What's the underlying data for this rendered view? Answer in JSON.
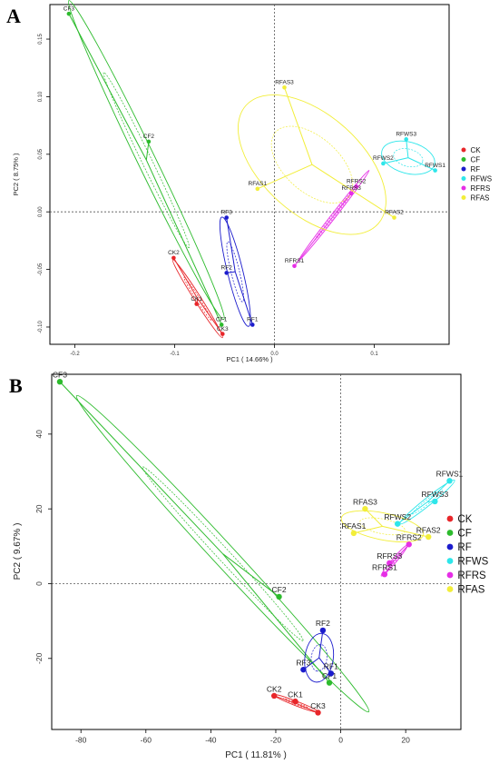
{
  "colors": {
    "CK": "#e8262a",
    "CF": "#2dbb2d",
    "RF": "#1c1ccc",
    "RFWS": "#2ee6ea",
    "RFRS": "#e62ee6",
    "RFAS": "#f2ee3a"
  },
  "chart_data": [
    {
      "type": "scatter",
      "panel": "A",
      "title": "",
      "xlabel": "PC1 ( 14.66% )",
      "ylabel": "PC2 ( 8.75% )",
      "xlim": [
        -0.225,
        0.175
      ],
      "ylim": [
        -0.115,
        0.18
      ],
      "xticks": [
        "-0.2",
        "-0.1",
        "0.0",
        "0.1"
      ],
      "xtick_values": [
        -0.2,
        -0.1,
        0.0,
        0.1
      ],
      "yticks": [
        "-0.10",
        "-0.05",
        "0.00",
        "0.05",
        "0.10",
        "0.15"
      ],
      "ytick_values": [
        -0.1,
        -0.05,
        0.0,
        0.05,
        0.1,
        0.15
      ],
      "grid": false,
      "reference_lines": [
        0,
        0
      ],
      "legend": [
        "CK",
        "CF",
        "RF",
        "RFWS",
        "RFRS",
        "RFAS"
      ],
      "legend_position": "right",
      "series": [
        {
          "name": "CK",
          "points": [
            {
              "label": "CK2",
              "x": -0.101,
              "y": -0.04
            },
            {
              "label": "CK1",
              "x": -0.078,
              "y": -0.08
            },
            {
              "label": "CK3",
              "x": -0.052,
              "y": -0.106
            }
          ]
        },
        {
          "name": "CF",
          "points": [
            {
              "label": "CF3",
              "x": -0.206,
              "y": 0.172
            },
            {
              "label": "CF2",
              "x": -0.126,
              "y": 0.061
            },
            {
              "label": "CF1",
              "x": -0.053,
              "y": -0.098
            }
          ]
        },
        {
          "name": "RF",
          "points": [
            {
              "label": "RF3",
              "x": -0.048,
              "y": -0.005
            },
            {
              "label": "RF2",
              "x": -0.048,
              "y": -0.053
            },
            {
              "label": "RF1",
              "x": -0.022,
              "y": -0.098
            }
          ]
        },
        {
          "name": "RFWS",
          "points": [
            {
              "label": "RFWS3",
              "x": 0.132,
              "y": 0.063
            },
            {
              "label": "RFWS2",
              "x": 0.109,
              "y": 0.042
            },
            {
              "label": "RFWS1",
              "x": 0.161,
              "y": 0.036
            }
          ]
        },
        {
          "name": "RFRS",
          "points": [
            {
              "label": "RFRS2",
              "x": 0.082,
              "y": 0.022
            },
            {
              "label": "RFRS3",
              "x": 0.077,
              "y": 0.016
            },
            {
              "label": "RFRS1",
              "x": 0.02,
              "y": -0.047
            }
          ]
        },
        {
          "name": "RFAS",
          "points": [
            {
              "label": "RFAS3",
              "x": 0.01,
              "y": 0.108
            },
            {
              "label": "RFAS1",
              "x": -0.017,
              "y": 0.02
            },
            {
              "label": "RFAS2",
              "x": 0.12,
              "y": -0.005
            }
          ]
        }
      ]
    },
    {
      "type": "scatter",
      "panel": "B",
      "title": "",
      "xlabel": "PC1 ( 11.81% )",
      "ylabel": "PC2 ( 9.67% )",
      "xlim": [
        -89,
        37
      ],
      "ylim": [
        -39,
        56
      ],
      "xticks": [
        "-80",
        "-60",
        "-40",
        "-20",
        "0",
        "20"
      ],
      "xtick_values": [
        -80,
        -60,
        -40,
        -20,
        0,
        20
      ],
      "yticks": [
        "-20",
        "0",
        "20",
        "40"
      ],
      "ytick_values": [
        -20,
        0,
        20,
        40
      ],
      "grid": false,
      "reference_lines": [
        0,
        0
      ],
      "legend": [
        "CK",
        "CF",
        "RF",
        "RFWS",
        "RFRS",
        "RFAS"
      ],
      "legend_position": "right",
      "series": [
        {
          "name": "CK",
          "points": [
            {
              "label": "CK2",
              "x": -20.5,
              "y": -30.0
            },
            {
              "label": "CK1",
              "x": -14.0,
              "y": -31.5
            },
            {
              "label": "CK3",
              "x": -7.0,
              "y": -34.5
            }
          ]
        },
        {
          "name": "CF",
          "points": [
            {
              "label": "CF3",
              "x": -86.5,
              "y": 54.0
            },
            {
              "label": "CF2",
              "x": -19.0,
              "y": -3.5
            },
            {
              "label": "CF1",
              "x": -3.5,
              "y": -26.5
            }
          ]
        },
        {
          "name": "RF",
          "points": [
            {
              "label": "RF2",
              "x": -5.5,
              "y": -12.5
            },
            {
              "label": "RF3",
              "x": -11.5,
              "y": -23.0
            },
            {
              "label": "RF1",
              "x": -3.0,
              "y": -24.0
            }
          ]
        },
        {
          "name": "RFWS",
          "points": [
            {
              "label": "RFWS1",
              "x": 33.5,
              "y": 27.5
            },
            {
              "label": "RFWS3",
              "x": 29.0,
              "y": 22.0
            },
            {
              "label": "RFWS2",
              "x": 17.5,
              "y": 16.0
            }
          ]
        },
        {
          "name": "RFRS",
          "points": [
            {
              "label": "RFRS2",
              "x": 21.0,
              "y": 10.5
            },
            {
              "label": "RFRS3",
              "x": 15.0,
              "y": 5.5
            },
            {
              "label": "RFRS1",
              "x": 13.5,
              "y": 2.5
            }
          ]
        },
        {
          "name": "RFAS",
          "points": [
            {
              "label": "RFAS3",
              "x": 7.5,
              "y": 20.0
            },
            {
              "label": "RFAS1",
              "x": 4.0,
              "y": 13.5
            },
            {
              "label": "RFAS2",
              "x": 27.0,
              "y": 12.5
            }
          ]
        }
      ]
    }
  ]
}
